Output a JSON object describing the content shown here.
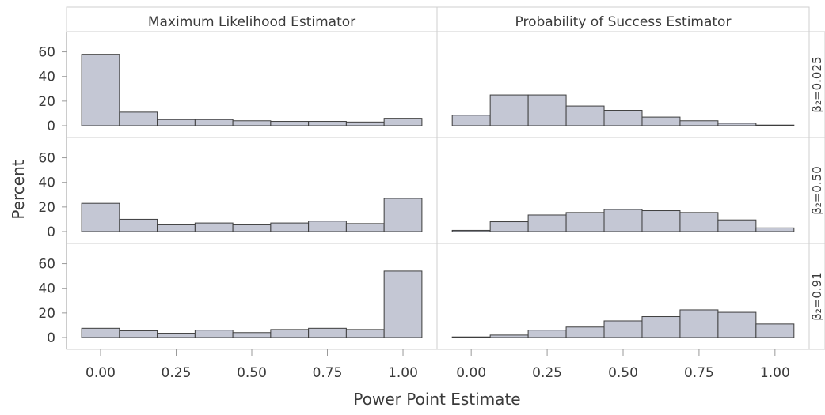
{
  "chart_data": {
    "type": "bar",
    "subtype": "histogram-panel",
    "xlabel": "Power Point Estimate",
    "ylabel": "Percent",
    "ylim": [
      0,
      70
    ],
    "y_ticks": [
      0,
      20,
      40,
      60
    ],
    "x_ticks": [
      "0.00",
      "0.25",
      "0.50",
      "0.75",
      "1.00"
    ],
    "bin_width": 0.125,
    "bin_centers": [
      0,
      0.125,
      0.25,
      0.375,
      0.5,
      0.625,
      0.75,
      0.875,
      1.0
    ],
    "columns": [
      "Maximum Likelihood Estimator",
      "Probability of Success Estimator"
    ],
    "rows": [
      "β₂=0.025",
      "β₂=0.50",
      "β₂=0.91"
    ],
    "panels": [
      {
        "column": "Maximum Likelihood Estimator",
        "row": "β₂=0.025",
        "values": [
          58,
          11,
          5,
          5,
          4,
          3.5,
          3.5,
          3,
          6
        ]
      },
      {
        "column": "Probability of Success Estimator",
        "row": "β₂=0.025",
        "values": [
          8.5,
          25,
          25,
          16,
          12.5,
          7,
          4,
          2,
          0.5
        ]
      },
      {
        "column": "Maximum Likelihood Estimator",
        "row": "β₂=0.50",
        "values": [
          23,
          10,
          5.5,
          7,
          5.5,
          7,
          8.5,
          6.5,
          27
        ]
      },
      {
        "column": "Probability of Success Estimator",
        "row": "β₂=0.50",
        "values": [
          1,
          8,
          13.5,
          15.5,
          18,
          17,
          15.5,
          9.5,
          3
        ]
      },
      {
        "column": "Maximum Likelihood Estimator",
        "row": "β₂=0.91",
        "values": [
          7.5,
          5.5,
          3.5,
          6,
          4,
          6.5,
          7.5,
          6.5,
          54
        ]
      },
      {
        "column": "Probability of Success Estimator",
        "row": "β₂=0.91",
        "values": [
          0.5,
          2,
          6,
          8.5,
          13.5,
          17,
          22.5,
          20.5,
          11
        ]
      }
    ],
    "grid": false,
    "legend": "none"
  },
  "colors": {
    "bar_fill": "#c4c7d4",
    "bar_stroke": "#3d3d3d",
    "frame": "#cfcfcf",
    "text": "#3a3a3a"
  }
}
